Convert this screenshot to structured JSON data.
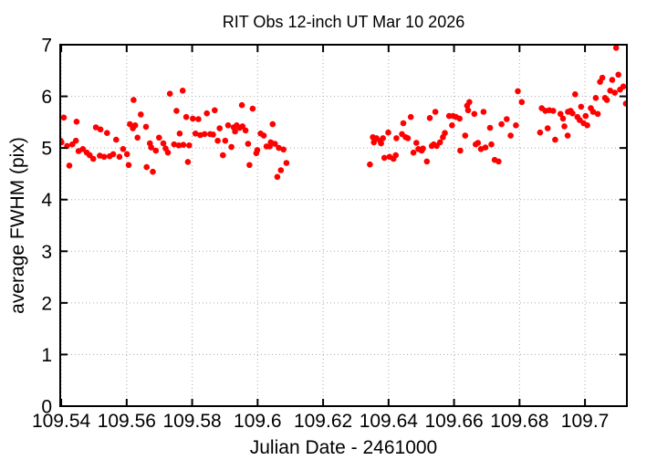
{
  "chart_data": {
    "type": "scatter",
    "title": "RIT Obs 12-inch UT Mar 10 2026",
    "xlabel": "Julian Date - 2461000",
    "ylabel": "average FWHM (pix)",
    "xlim": [
      109.5397,
      109.7128
    ],
    "ylim": [
      0,
      7
    ],
    "grid": true,
    "legend": "none",
    "x_ticks": [
      {
        "v": 109.54,
        "label": "109.54"
      },
      {
        "v": 109.56,
        "label": "109.56"
      },
      {
        "v": 109.58,
        "label": "109.58"
      },
      {
        "v": 109.6,
        "label": "109.6"
      },
      {
        "v": 109.62,
        "label": "109.62"
      },
      {
        "v": 109.64,
        "label": "109.64"
      },
      {
        "v": 109.66,
        "label": "109.66"
      },
      {
        "v": 109.68,
        "label": "109.68"
      },
      {
        "v": 109.7,
        "label": "109.7"
      }
    ],
    "y_ticks": [
      {
        "v": 0,
        "label": "0"
      },
      {
        "v": 1,
        "label": "1"
      },
      {
        "v": 2,
        "label": "2"
      },
      {
        "v": 3,
        "label": "3"
      },
      {
        "v": 4,
        "label": "4"
      },
      {
        "v": 5,
        "label": "5"
      },
      {
        "v": 6,
        "label": "6"
      },
      {
        "v": 7,
        "label": "7"
      }
    ],
    "marker": {
      "shape": "circle",
      "color": "#ff0000",
      "radius": 3.3
    },
    "grid_color": "#aaaaaa",
    "frame_color": "#000000",
    "series": [
      {
        "name": "average FWHM",
        "points": [
          [
            109.5398,
            5.14
          ],
          [
            109.5401,
            5.11
          ],
          [
            109.5408,
            5.59
          ],
          [
            109.5418,
            5.04
          ],
          [
            109.5425,
            4.66
          ],
          [
            109.5434,
            5.07
          ],
          [
            109.5445,
            5.14
          ],
          [
            109.5447,
            5.51
          ],
          [
            109.5453,
            4.94
          ],
          [
            109.5466,
            4.98
          ],
          [
            109.5478,
            4.91
          ],
          [
            109.5487,
            4.86
          ],
          [
            109.5498,
            4.79
          ],
          [
            109.5506,
            5.4
          ],
          [
            109.5518,
            4.85
          ],
          [
            109.552,
            5.36
          ],
          [
            109.5531,
            4.83
          ],
          [
            109.554,
            5.29
          ],
          [
            109.5548,
            4.84
          ],
          [
            109.5559,
            4.88
          ],
          [
            109.5568,
            5.16
          ],
          [
            109.5578,
            4.83
          ],
          [
            109.5589,
            4.98
          ],
          [
            109.5601,
            4.88
          ],
          [
            109.5606,
            4.67
          ],
          [
            109.561,
            5.46
          ],
          [
            109.5619,
            5.38
          ],
          [
            109.5621,
            5.93
          ],
          [
            109.5626,
            5.44
          ],
          [
            109.5633,
            5.2
          ],
          [
            109.5643,
            5.65
          ],
          [
            109.5659,
            5.41
          ],
          [
            109.5661,
            4.63
          ],
          [
            109.5671,
            5.09
          ],
          [
            109.5675,
            5.01
          ],
          [
            109.568,
            4.54
          ],
          [
            109.5689,
            4.95
          ],
          [
            109.5699,
            5.2
          ],
          [
            109.5712,
            5.09
          ],
          [
            109.5719,
            4.99
          ],
          [
            109.5726,
            4.91
          ],
          [
            109.5732,
            6.05
          ],
          [
            109.5745,
            5.07
          ],
          [
            109.5752,
            5.72
          ],
          [
            109.5759,
            5.05
          ],
          [
            109.5762,
            5.28
          ],
          [
            109.5771,
            6.11
          ],
          [
            109.5773,
            5.06
          ],
          [
            109.5782,
            5.6
          ],
          [
            109.5787,
            4.73
          ],
          [
            109.5791,
            5.05
          ],
          [
            109.5802,
            5.57
          ],
          [
            109.581,
            5.28
          ],
          [
            109.5819,
            5.56
          ],
          [
            109.5825,
            5.25
          ],
          [
            109.5838,
            5.27
          ],
          [
            109.5845,
            5.67
          ],
          [
            109.5855,
            5.27
          ],
          [
            109.5864,
            5.26
          ],
          [
            109.5869,
            5.73
          ],
          [
            109.5878,
            5.14
          ],
          [
            109.5884,
            5.38
          ],
          [
            109.5894,
            4.86
          ],
          [
            109.5901,
            5.14
          ],
          [
            109.591,
            5.44
          ],
          [
            109.592,
            5.02
          ],
          [
            109.5927,
            5.4
          ],
          [
            109.5931,
            5.32
          ],
          [
            109.5936,
            5.44
          ],
          [
            109.5945,
            5.39
          ],
          [
            109.5952,
            5.83
          ],
          [
            109.5954,
            5.42
          ],
          [
            109.5963,
            5.34
          ],
          [
            109.5971,
            5.08
          ],
          [
            109.5975,
            4.67
          ],
          [
            109.5985,
            5.76
          ],
          [
            109.5996,
            4.9
          ],
          [
            109.5999,
            4.96
          ],
          [
            109.6009,
            5.28
          ],
          [
            109.6019,
            5.24
          ],
          [
            109.6027,
            5.03
          ],
          [
            109.6037,
            5.03
          ],
          [
            109.604,
            5.11
          ],
          [
            109.6046,
            5.46
          ],
          [
            109.6053,
            5.08
          ],
          [
            109.606,
            4.44
          ],
          [
            109.6065,
            5.0
          ],
          [
            109.6071,
            4.57
          ],
          [
            109.6079,
            4.97
          ],
          [
            109.6088,
            4.71
          ],
          [
            109.6343,
            4.68
          ],
          [
            109.6352,
            5.21
          ],
          [
            109.6355,
            5.11
          ],
          [
            109.6363,
            5.19
          ],
          [
            109.6374,
            5.14
          ],
          [
            109.6377,
            5.09
          ],
          [
            109.6383,
            5.19
          ],
          [
            109.6387,
            4.81
          ],
          [
            109.6399,
            5.3
          ],
          [
            109.6403,
            4.83
          ],
          [
            109.6415,
            4.79
          ],
          [
            109.6422,
            4.86
          ],
          [
            109.6424,
            5.19
          ],
          [
            109.6441,
            5.27
          ],
          [
            109.6445,
            5.48
          ],
          [
            109.6452,
            5.21
          ],
          [
            109.6459,
            5.19
          ],
          [
            109.6468,
            5.6
          ],
          [
            109.6476,
            4.91
          ],
          [
            109.6485,
            5.1
          ],
          [
            109.6491,
            4.98
          ],
          [
            109.6501,
            4.95
          ],
          [
            109.6505,
            4.99
          ],
          [
            109.6517,
            4.74
          ],
          [
            109.6526,
            5.58
          ],
          [
            109.6532,
            5.04
          ],
          [
            109.6538,
            5.07
          ],
          [
            109.6543,
            5.7
          ],
          [
            109.6547,
            5.04
          ],
          [
            109.6557,
            5.11
          ],
          [
            109.6566,
            5.21
          ],
          [
            109.6572,
            5.29
          ],
          [
            109.6585,
            5.62
          ],
          [
            109.6594,
            5.44
          ],
          [
            109.6597,
            5.62
          ],
          [
            109.6606,
            5.6
          ],
          [
            109.6617,
            5.57
          ],
          [
            109.6619,
            4.95
          ],
          [
            109.6634,
            5.24
          ],
          [
            109.664,
            5.82
          ],
          [
            109.6643,
            5.73
          ],
          [
            109.6647,
            5.89
          ],
          [
            109.6662,
            5.66
          ],
          [
            109.6666,
            5.07
          ],
          [
            109.6673,
            5.1
          ],
          [
            109.6682,
            4.98
          ],
          [
            109.669,
            5.7
          ],
          [
            109.6696,
            5.01
          ],
          [
            109.671,
            5.39
          ],
          [
            109.6714,
            5.07
          ],
          [
            109.6724,
            4.77
          ],
          [
            109.6736,
            4.74
          ],
          [
            109.6745,
            5.46
          ],
          [
            109.6761,
            5.56
          ],
          [
            109.6773,
            5.24
          ],
          [
            109.6789,
            5.44
          ],
          [
            109.6795,
            6.1
          ],
          [
            109.6807,
            5.89
          ],
          [
            109.6863,
            5.3
          ],
          [
            109.6868,
            5.77
          ],
          [
            109.6879,
            5.72
          ],
          [
            109.6886,
            5.38
          ],
          [
            109.6891,
            5.73
          ],
          [
            109.6903,
            5.72
          ],
          [
            109.6909,
            5.16
          ],
          [
            109.6925,
            5.66
          ],
          [
            109.6933,
            5.57
          ],
          [
            109.6937,
            5.42
          ],
          [
            109.6947,
            5.24
          ],
          [
            109.6948,
            5.7
          ],
          [
            109.6956,
            5.72
          ],
          [
            109.6962,
            5.67
          ],
          [
            109.697,
            6.04
          ],
          [
            109.6977,
            5.6
          ],
          [
            109.6984,
            5.54
          ],
          [
            109.6988,
            5.8
          ],
          [
            109.6996,
            5.48
          ],
          [
            109.7002,
            5.62
          ],
          [
            109.7007,
            5.44
          ],
          [
            109.7018,
            5.77
          ],
          [
            109.7025,
            5.7
          ],
          [
            109.7033,
            5.97
          ],
          [
            109.7039,
            5.66
          ],
          [
            109.7046,
            6.28
          ],
          [
            109.7053,
            6.36
          ],
          [
            109.7061,
            5.97
          ],
          [
            109.7067,
            5.93
          ],
          [
            109.7077,
            6.11
          ],
          [
            109.7083,
            6.32
          ],
          [
            109.7091,
            6.07
          ],
          [
            109.7095,
            6.94
          ],
          [
            109.7102,
            6.42
          ],
          [
            109.7107,
            6.13
          ],
          [
            109.7117,
            6.19
          ],
          [
            109.7125,
            5.86
          ]
        ]
      }
    ]
  }
}
